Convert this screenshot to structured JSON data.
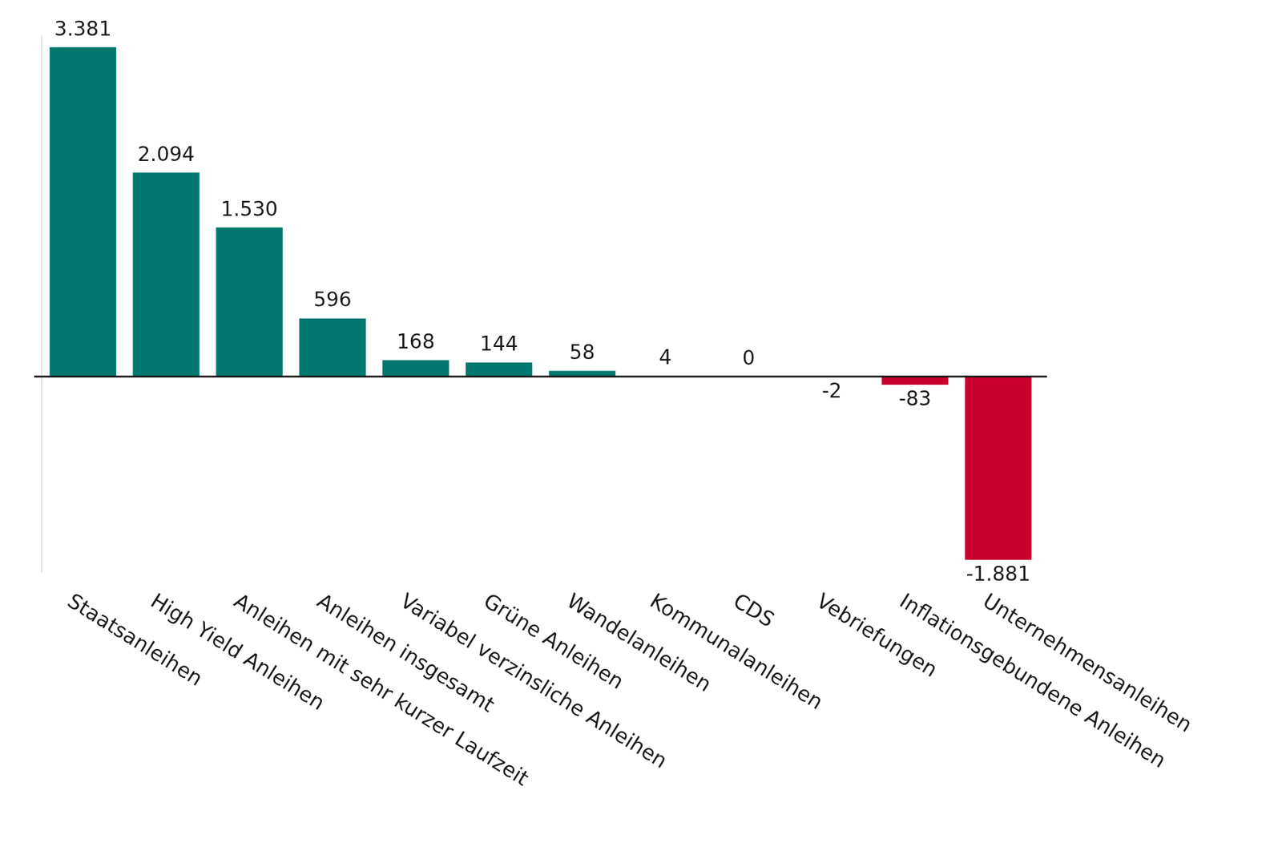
{
  "chart_data": {
    "type": "bar",
    "categories": [
      "Staatsanleihen",
      "High Yield Anleihen",
      "Anleihen mit sehr kurzer Laufzeit",
      "Anleihen insgesamt",
      "Variabel verzinsliche Anleihen",
      "Grüne Anleihen",
      "Wandelanleihen",
      "Kommunalanleihen",
      "CDS",
      "Vebriefungen",
      "Inflationsgebundene Anleihen",
      "Unternehmensanleihen"
    ],
    "values": [
      3381,
      2094,
      1530,
      596,
      168,
      144,
      58,
      4,
      0,
      -2,
      -83,
      -1881
    ],
    "value_labels": [
      "3.381",
      "2.094",
      "1.530",
      "596",
      "168",
      "144",
      "58",
      "4",
      "0",
      "-2",
      "-83",
      "-1.881"
    ],
    "colors": [
      "#00786f",
      "#00786f",
      "#00786f",
      "#00786f",
      "#00786f",
      "#00786f",
      "#00786f",
      "#00786f",
      "#00786f",
      "#c8002d",
      "#c8002d",
      "#c8002d"
    ],
    "ylim": [
      -2000,
      3500
    ],
    "grid": false,
    "data_labels": true,
    "tick_labels": "x"
  }
}
